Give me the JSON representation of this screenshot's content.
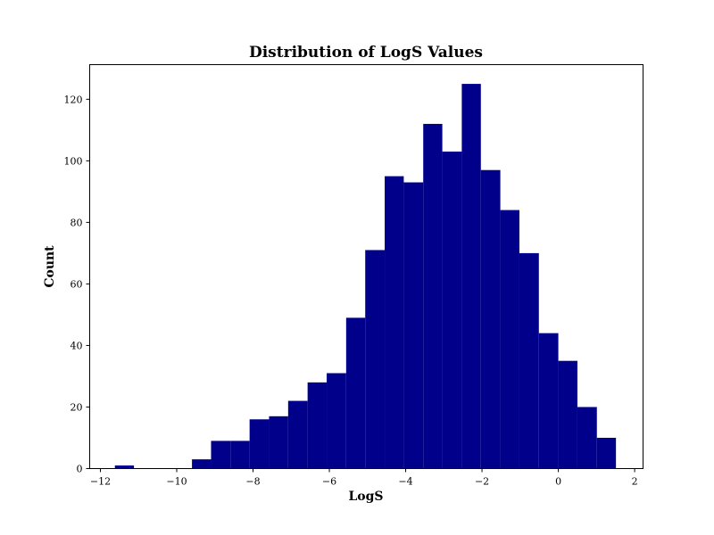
{
  "chart_data": {
    "type": "bar",
    "title": "Distribution of LogS Values",
    "xlabel": "LogS",
    "ylabel": "Count",
    "bar_color": "#00008b",
    "xlim": [
      -12.28,
      2.22
    ],
    "ylim": [
      0,
      131.25
    ],
    "xticks": [
      -12,
      -10,
      -8,
      -6,
      -4,
      -2,
      0,
      2
    ],
    "xtick_labels": [
      "−12",
      "−10",
      "−8",
      "−6",
      "−4",
      "−2",
      "0",
      "2"
    ],
    "yticks": [
      0,
      20,
      40,
      60,
      80,
      100,
      120
    ],
    "ytick_labels": [
      "0",
      "20",
      "40",
      "60",
      "80",
      "100",
      "120"
    ],
    "grid": false,
    "bins": [
      {
        "x0": -11.62,
        "x1": -11.12,
        "count": 1
      },
      {
        "x0": -11.12,
        "x1": -10.61,
        "count": 0
      },
      {
        "x0": -10.61,
        "x1": -10.11,
        "count": 0
      },
      {
        "x0": -10.11,
        "x1": -9.6,
        "count": 0
      },
      {
        "x0": -9.6,
        "x1": -9.1,
        "count": 3
      },
      {
        "x0": -9.1,
        "x1": -8.59,
        "count": 9
      },
      {
        "x0": -8.59,
        "x1": -8.09,
        "count": 9
      },
      {
        "x0": -8.09,
        "x1": -7.58,
        "count": 16
      },
      {
        "x0": -7.58,
        "x1": -7.08,
        "count": 17
      },
      {
        "x0": -7.08,
        "x1": -6.57,
        "count": 22
      },
      {
        "x0": -6.57,
        "x1": -6.07,
        "count": 28
      },
      {
        "x0": -6.07,
        "x1": -5.56,
        "count": 31
      },
      {
        "x0": -5.56,
        "x1": -5.06,
        "count": 49
      },
      {
        "x0": -5.06,
        "x1": -4.55,
        "count": 71
      },
      {
        "x0": -4.55,
        "x1": -4.05,
        "count": 95
      },
      {
        "x0": -4.05,
        "x1": -3.54,
        "count": 93
      },
      {
        "x0": -3.54,
        "x1": -3.04,
        "count": 112
      },
      {
        "x0": -3.04,
        "x1": -2.53,
        "count": 103
      },
      {
        "x0": -2.53,
        "x1": -2.03,
        "count": 125
      },
      {
        "x0": -2.03,
        "x1": -1.52,
        "count": 97
      },
      {
        "x0": -1.52,
        "x1": -1.02,
        "count": 84
      },
      {
        "x0": -1.02,
        "x1": -0.51,
        "count": 70
      },
      {
        "x0": -0.51,
        "x1": 0.0,
        "count": 44
      },
      {
        "x0": 0.0,
        "x1": 0.5,
        "count": 35
      },
      {
        "x0": 0.5,
        "x1": 1.01,
        "count": 20
      },
      {
        "x0": 1.01,
        "x1": 1.51,
        "count": 10
      }
    ]
  }
}
